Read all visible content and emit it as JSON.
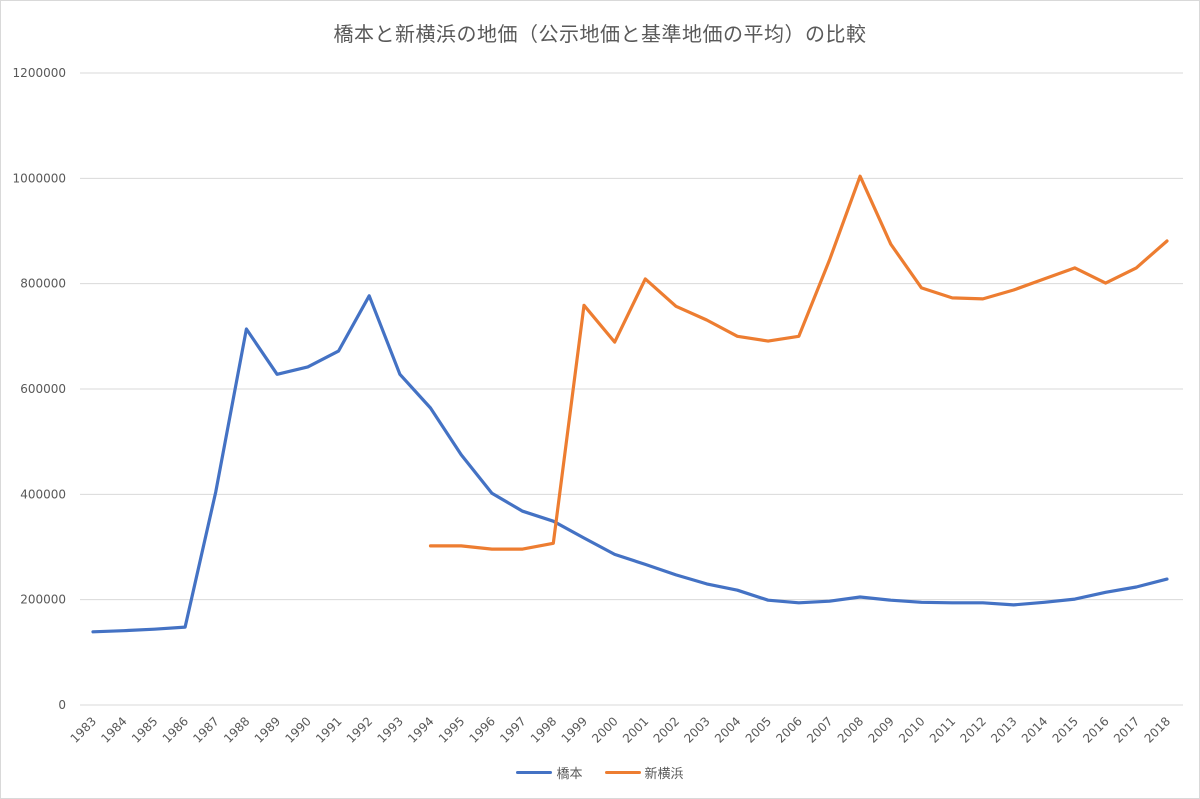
{
  "chart_data": {
    "type": "line",
    "title": "橋本と新横浜の地価（公示地価と基準地価の平均）の比較",
    "xlabel": "",
    "ylabel": "",
    "ylim": [
      0,
      1200000
    ],
    "yticks": [
      "0",
      "200000",
      "400000",
      "600000",
      "800000",
      "1000000",
      "1200000"
    ],
    "grid": true,
    "legend_position": "bottom",
    "categories": [
      "1983",
      "1984",
      "1985",
      "1986",
      "1987",
      "1988",
      "1989",
      "1990",
      "1991",
      "1992",
      "1993",
      "1994",
      "1995",
      "1996",
      "1997",
      "1998",
      "1999",
      "2000",
      "2001",
      "2002",
      "2003",
      "2004",
      "2005",
      "2006",
      "2007",
      "2008",
      "2009",
      "2010",
      "2011",
      "2012",
      "2013",
      "2014",
      "2015",
      "2016",
      "2017",
      "2018"
    ],
    "series": [
      {
        "name": "橋本",
        "color": "#4472C4",
        "values": [
          139000,
          141000,
          144000,
          148000,
          404000,
          714000,
          628000,
          642000,
          672000,
          777000,
          628000,
          564000,
          475000,
          402000,
          368000,
          349000,
          317000,
          286000,
          267000,
          247000,
          230000,
          218000,
          199000,
          194000,
          197000,
          205000,
          199000,
          195000,
          194000,
          194000,
          190000,
          195000,
          201000,
          214000,
          224000,
          239000
        ]
      },
      {
        "name": "新横浜",
        "color": "#ED7D31",
        "values": [
          null,
          null,
          null,
          null,
          null,
          null,
          null,
          null,
          null,
          null,
          null,
          302000,
          302000,
          296000,
          296000,
          307000,
          759000,
          689000,
          809000,
          757000,
          731000,
          700000,
          691000,
          700000,
          845000,
          1004000,
          875000,
          792000,
          773000,
          771000,
          788000,
          809000,
          830000,
          801000,
          830000,
          881000
        ]
      }
    ]
  },
  "legend": {
    "items": [
      {
        "label": "橋本",
        "color": "#4472C4"
      },
      {
        "label": "新横浜",
        "color": "#ED7D31"
      }
    ]
  }
}
